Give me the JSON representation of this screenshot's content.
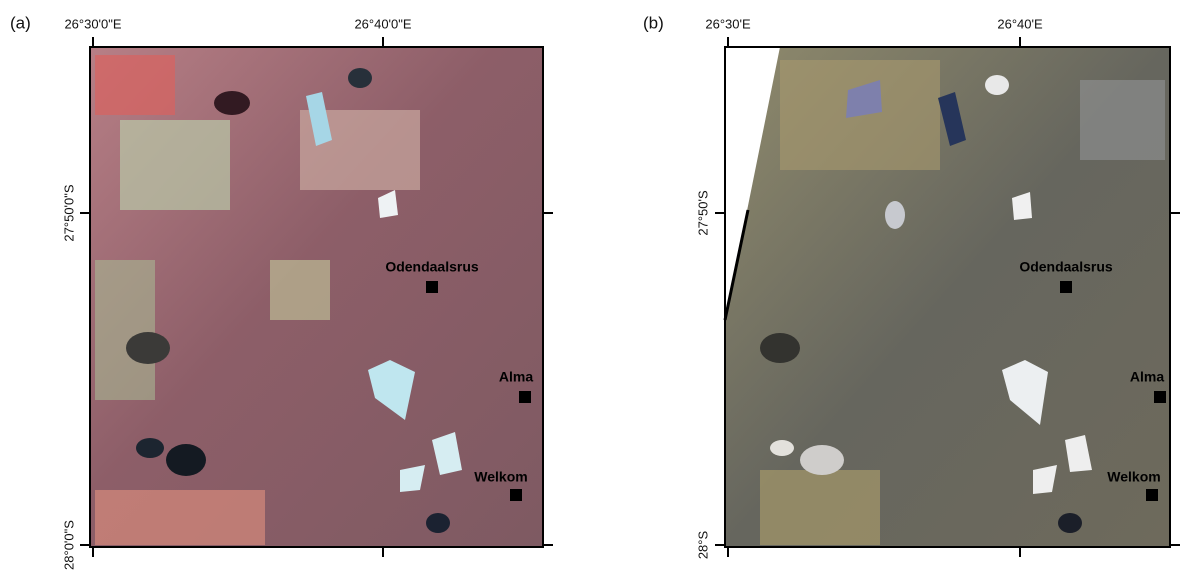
{
  "panels": [
    {
      "label": "(a)",
      "top_labels": [
        "26°30'0\"E",
        "26°40'0\"E"
      ],
      "left_labels": [
        "27°50'0\"S",
        "28°0'0\"S"
      ],
      "places": [
        {
          "name": "Odendaalsrus"
        },
        {
          "name": "Alma"
        },
        {
          "name": "Welkom"
        }
      ]
    },
    {
      "label": "(b)",
      "top_labels": [
        "26°30'E",
        "26°40'E"
      ],
      "left_labels": [
        "27°50'S",
        "28°S"
      ],
      "places": [
        {
          "name": "Odendaalsrus"
        },
        {
          "name": "Alma"
        },
        {
          "name": "Welkom"
        }
      ]
    }
  ]
}
